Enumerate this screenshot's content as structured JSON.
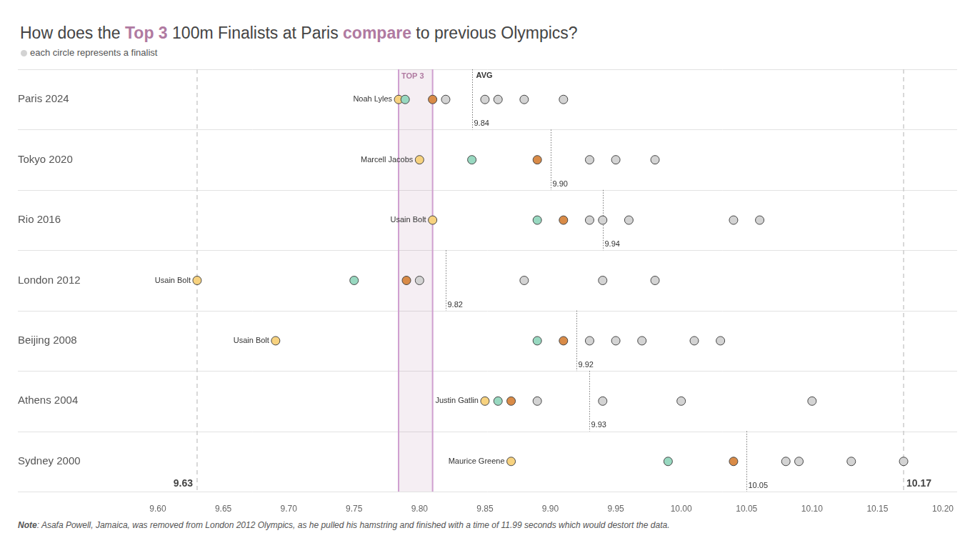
{
  "chart_data": {
    "type": "scatter",
    "title": [
      "How does the ",
      "Top 3",
      " 100m Finalists at Paris ",
      "compare",
      " to previous Olympics?"
    ],
    "subtitle": "each circle represents a finalist",
    "note_label": "Note",
    "note": ": Asafa Powell, Jamaica, was removed from London 2012 Olympics, as he pulled his hamstring and finished with a time of 11.99 seconds which would destort the data.",
    "categories": [
      "Paris 2024",
      "Tokyo 2020",
      "Rio 2016",
      "London 2012",
      "Beijing 2008",
      "Athens 2004",
      "Sydney 2000"
    ],
    "values": [
      [
        9.784,
        9.789,
        9.81,
        9.82,
        9.85,
        9.86,
        9.88,
        9.91
      ],
      [
        9.8,
        9.84,
        9.89,
        9.93,
        9.95,
        9.98
      ],
      [
        9.81,
        9.89,
        9.91,
        9.93,
        9.94,
        9.96,
        10.04,
        10.06
      ],
      [
        9.63,
        9.75,
        9.79,
        9.8,
        9.88,
        9.94,
        9.98
      ],
      [
        9.69,
        9.89,
        9.91,
        9.93,
        9.95,
        9.97,
        10.01,
        10.03
      ],
      [
        9.85,
        9.86,
        9.87,
        9.89,
        9.94,
        10.0,
        10.1
      ],
      [
        9.87,
        9.99,
        10.04,
        10.08,
        10.09,
        10.13,
        10.17
      ]
    ],
    "colors": [
      [
        "#f7d27f",
        "#98d8c0",
        "#d98b47",
        "#d3d3d3",
        "#d3d3d3",
        "#d3d3d3",
        "#d3d3d3",
        "#d3d3d3"
      ],
      [
        "#f7d27f",
        "#98d8c0",
        "#d98b47",
        "#d3d3d3",
        "#d3d3d3",
        "#d3d3d3"
      ],
      [
        "#f7d27f",
        "#98d8c0",
        "#d98b47",
        "#d3d3d3",
        "#d3d3d3",
        "#d3d3d3",
        "#d3d3d3",
        "#d3d3d3"
      ],
      [
        "#f7d27f",
        "#98d8c0",
        "#d98b47",
        "#d3d3d3",
        "#d3d3d3",
        "#d3d3d3",
        "#d3d3d3"
      ],
      [
        "#f7d27f",
        "#98d8c0",
        "#d98b47",
        "#d3d3d3",
        "#d3d3d3",
        "#d3d3d3",
        "#d3d3d3",
        "#d3d3d3"
      ],
      [
        "#f7d27f",
        "#98d8c0",
        "#d98b47",
        "#d3d3d3",
        "#d3d3d3",
        "#d3d3d3",
        "#d3d3d3"
      ],
      [
        "#f7d27f",
        "#98d8c0",
        "#d98b47",
        "#d3d3d3",
        "#d3d3d3",
        "#d3d3d3",
        "#d3d3d3"
      ]
    ],
    "winners": [
      "Noah Lyles",
      "Marcell Jacobs",
      "Usain Bolt",
      "Usain Bolt",
      "Usain Bolt",
      "Justin Gatlin",
      "Maurice Greene"
    ],
    "average_label": "AVG",
    "averages": [
      9.84,
      {
        "value": 9.9,
        "label": "9.90"
      },
      9.94,
      9.82,
      9.92,
      9.93,
      10.05
    ],
    "reference_lines": [
      9.63,
      10.17
    ],
    "band": {
      "label": "TOP 3",
      "range": [
        9.784,
        9.81
      ]
    },
    "xlim": [
      9.6,
      10.2
    ],
    "xticks": [
      {
        "value": 9.6,
        "label": "9.60"
      },
      9.65,
      {
        "value": 9.7,
        "label": "9.70"
      },
      9.75,
      {
        "value": 9.8,
        "label": "9.80"
      },
      9.85,
      {
        "value": 9.9,
        "label": "9.90"
      },
      9.95,
      {
        "value": 10,
        "label": "10.00"
      },
      10.05,
      {
        "value": 10.1,
        "label": "10.10"
      },
      10.15,
      {
        "value": 10.2,
        "label": "10.20"
      }
    ],
    "grid": true
  }
}
